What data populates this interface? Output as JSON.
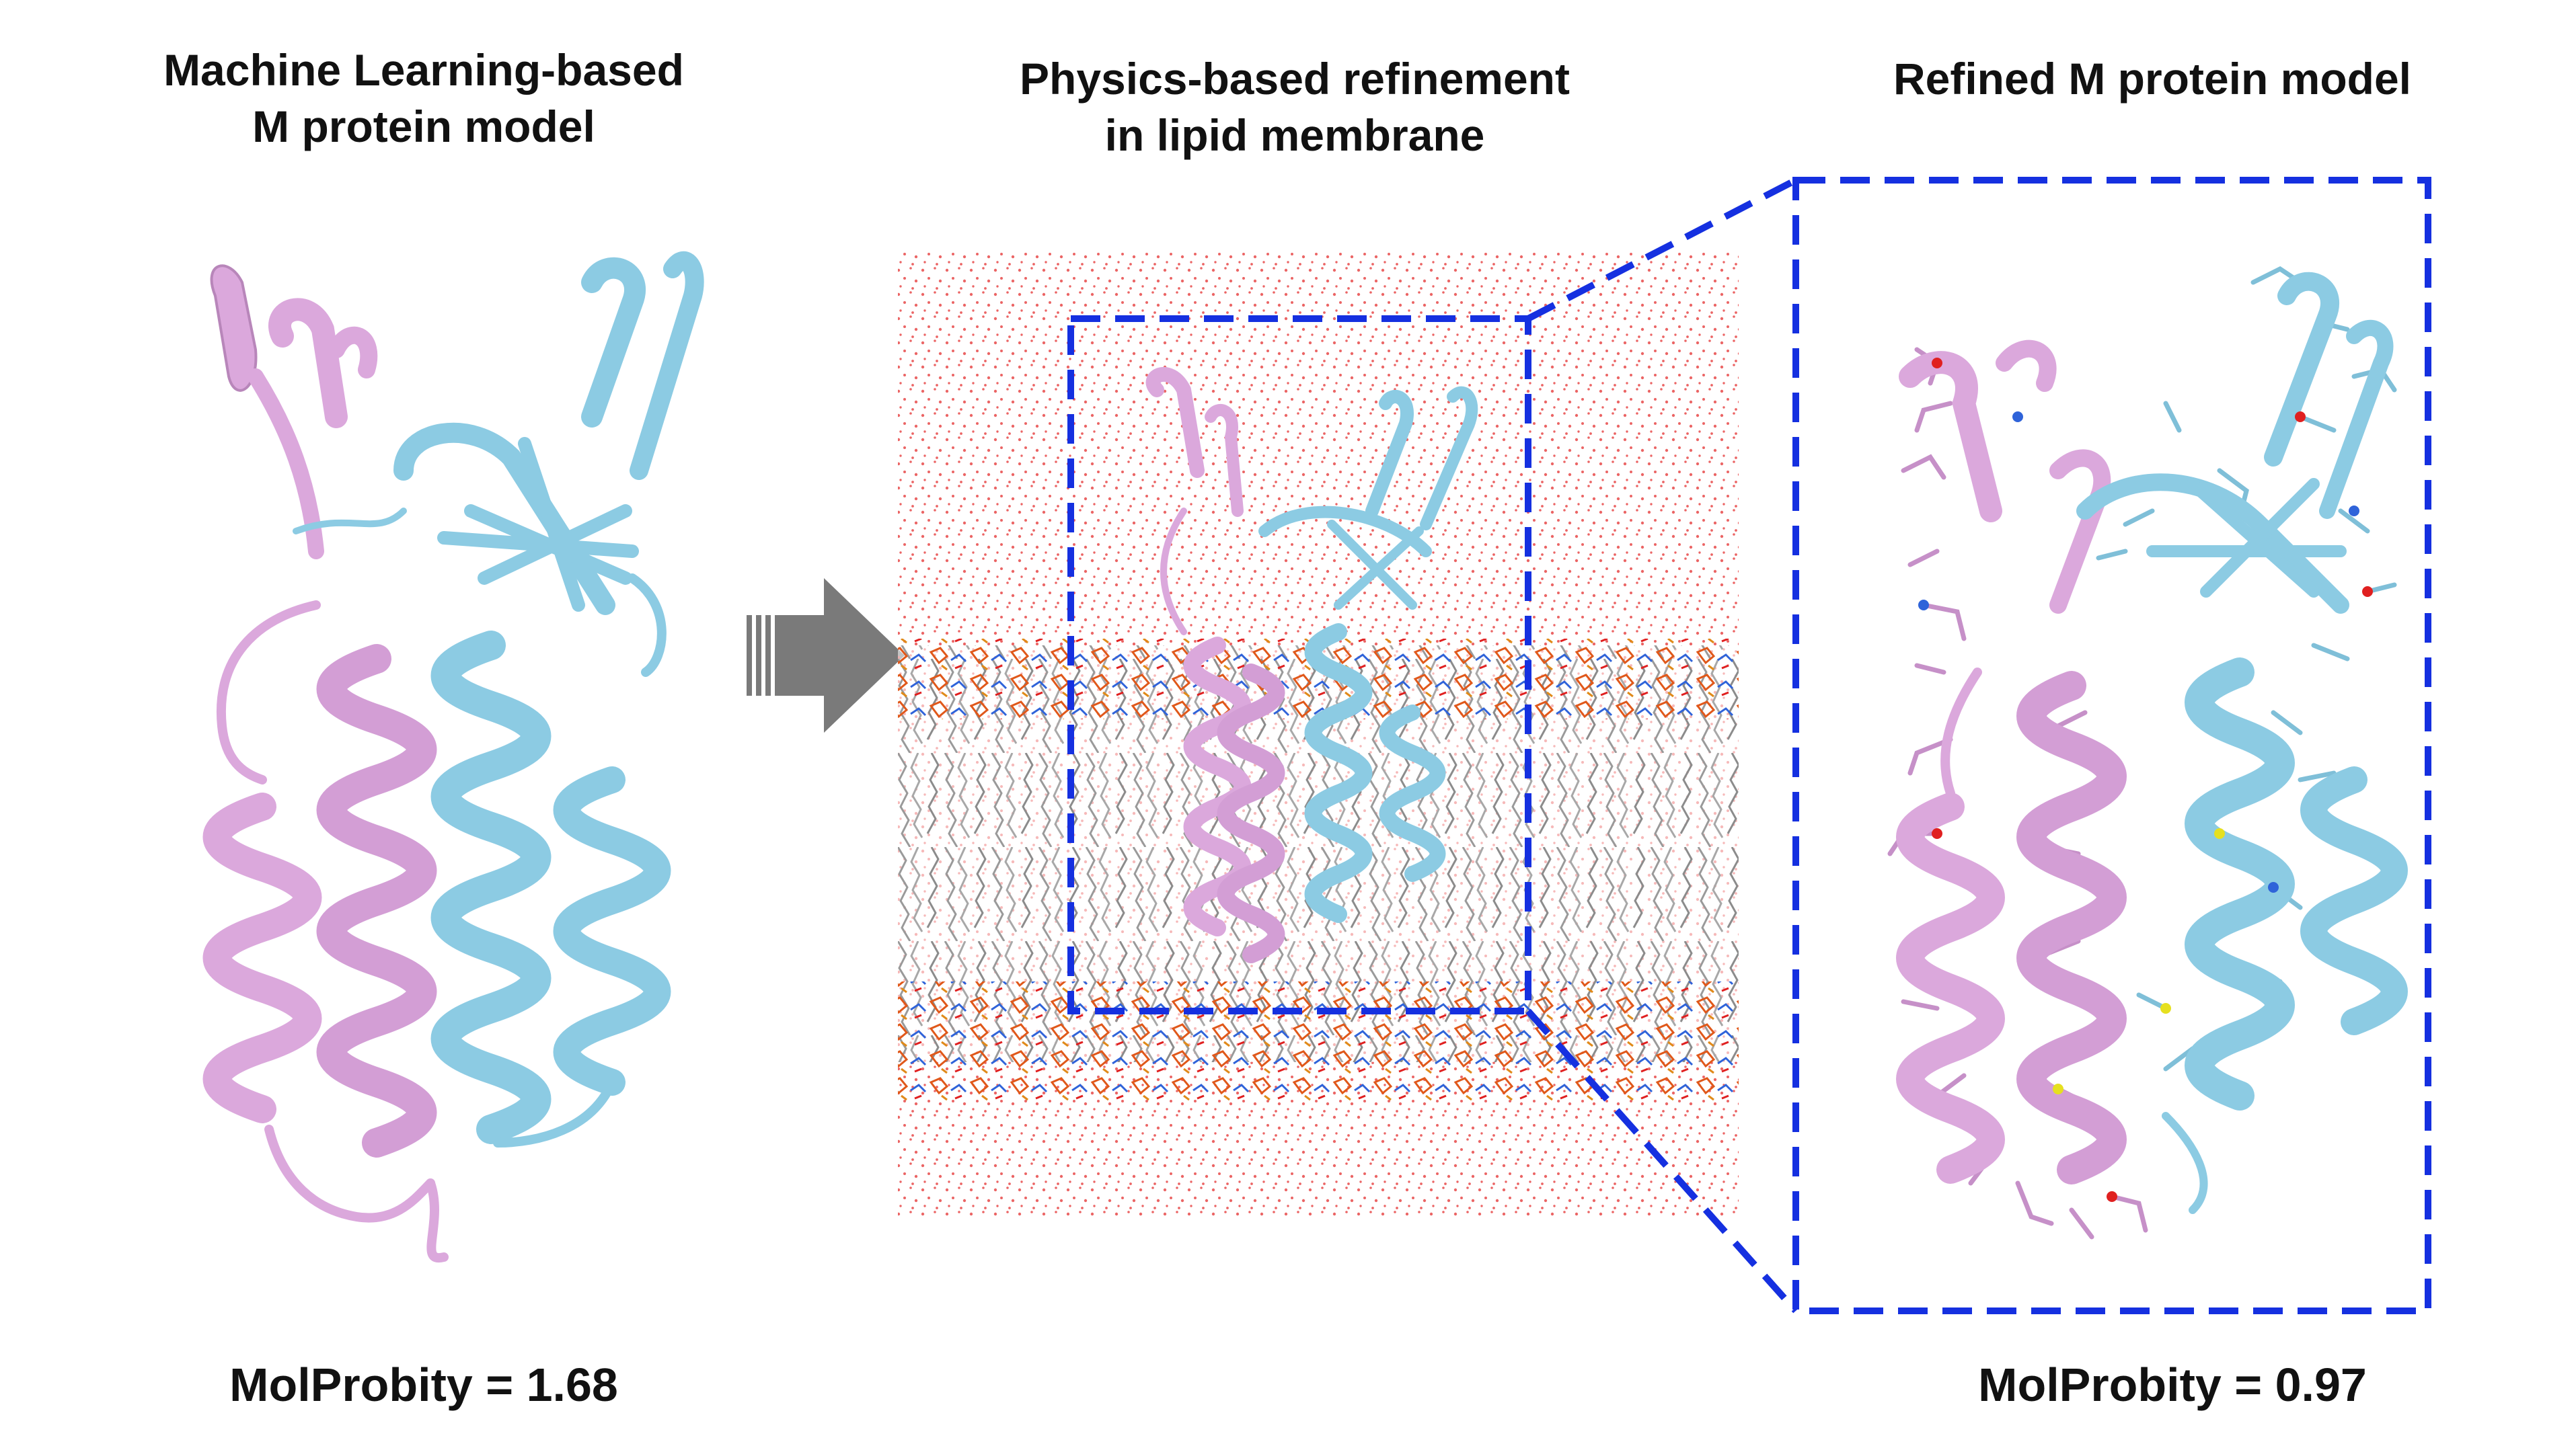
{
  "panels": {
    "left": {
      "title_line1": "Machine Learning-based",
      "title_line2": "M protein model",
      "score": "MolProbity = 1.68"
    },
    "middle": {
      "title_line1": "Physics-based refinement",
      "title_line2": "in lipid membrane"
    },
    "right": {
      "title_line1": "Refined M protein model",
      "score": "MolProbity = 0.97"
    }
  },
  "colors": {
    "chain_a": "#dba8dc",
    "chain_b": "#8ccbe3",
    "zoom_box": "#1530e0",
    "arrow": "#7a7a7a",
    "water": "#e84a4a",
    "lipid": "#8f8f8f"
  }
}
